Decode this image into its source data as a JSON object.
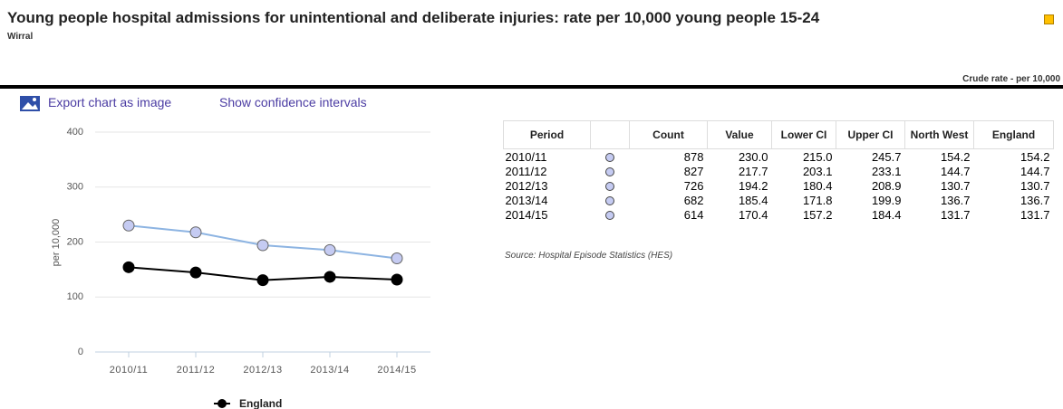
{
  "header": {
    "title": "Young people hospital admissions for unintentional and deliberate injuries: rate per 10,000 young people 15-24",
    "subtitle": "Wirral",
    "unit": "Crude rate - per 10,000"
  },
  "toolbar": {
    "export": "Export chart as image",
    "confidence": "Show confidence intervals"
  },
  "chart_data": {
    "type": "line",
    "y_label": "per 10,000",
    "categories": [
      "2010/11",
      "2011/12",
      "2012/13",
      "2013/14",
      "2014/15"
    ],
    "series": [
      {
        "color": "#8db4e2",
        "marker_color": "#c5cbf2",
        "values": [
          230.0,
          217.7,
          194.2,
          185.4,
          170.4
        ]
      },
      {
        "name": "England",
        "color": "#000000",
        "marker_color": "#000000",
        "values": [
          154.2,
          144.7,
          130.7,
          136.7,
          131.7
        ]
      }
    ],
    "ylim": [
      0,
      400
    ],
    "yticks": [
      0,
      100,
      200,
      300,
      400
    ],
    "grid": true,
    "legend": "bottom"
  },
  "table": {
    "headers": [
      "Period",
      "Count",
      "Value",
      "Lower CI",
      "Upper CI",
      "North West",
      "England"
    ],
    "rows": [
      [
        "2010/11",
        "878",
        "230.0",
        "215.0",
        "245.7",
        "154.2",
        "154.2"
      ],
      [
        "2011/12",
        "827",
        "217.7",
        "203.1",
        "233.1",
        "144.7",
        "144.7"
      ],
      [
        "2012/13",
        "726",
        "194.2",
        "180.4",
        "208.9",
        "130.7",
        "130.7"
      ],
      [
        "2013/14",
        "682",
        "185.4",
        "171.8",
        "199.9",
        "136.7",
        "136.7"
      ],
      [
        "2014/15",
        "614",
        "170.4",
        "157.2",
        "184.4",
        "131.7",
        "131.7"
      ]
    ],
    "source": "Source: Hospital Episode Statistics (HES)"
  }
}
